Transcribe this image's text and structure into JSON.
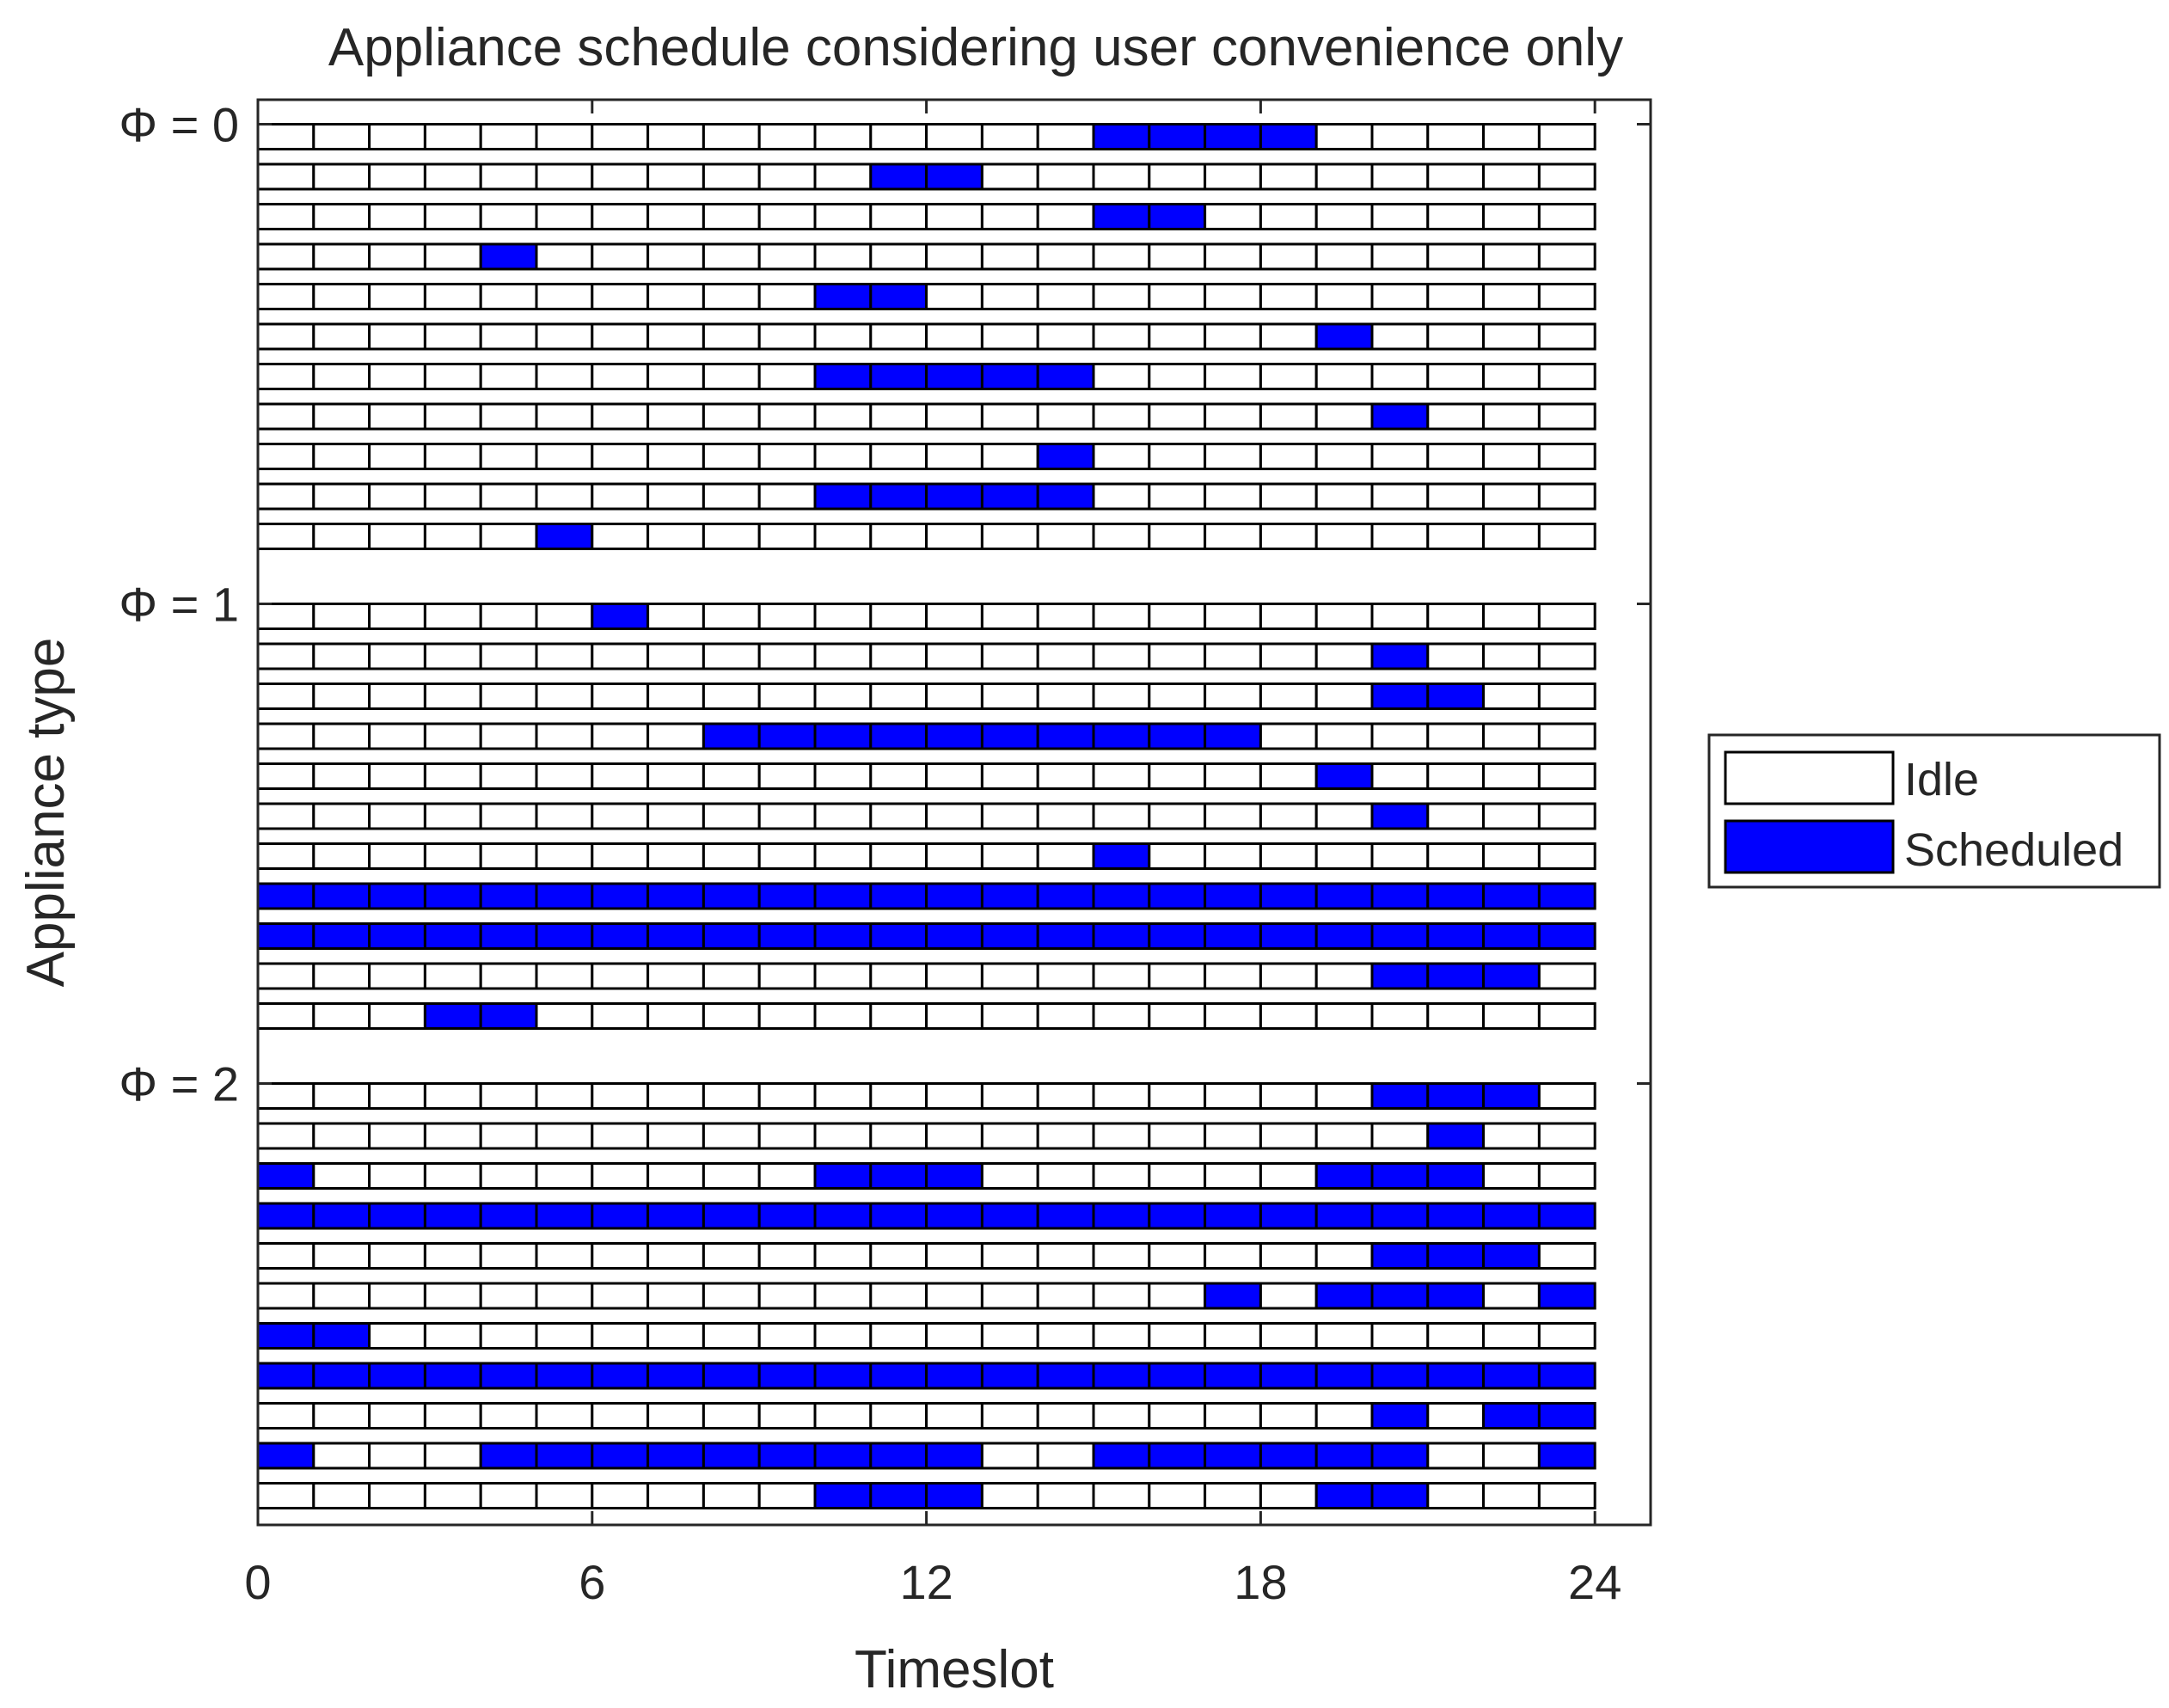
{
  "chart_data": {
    "type": "heatmap",
    "title": "Appliance schedule considering user convenience only",
    "xlabel": "Timeslot",
    "ylabel": "Appliance type",
    "xlim": [
      0,
      25
    ],
    "x_ticks": [
      0,
      6,
      12,
      18,
      24
    ],
    "timeslots": 24,
    "y_ticks": [
      {
        "label": "Φ = 0",
        "row": 0
      },
      {
        "label": "Φ = 1",
        "row": 11
      },
      {
        "label": "Φ = 2",
        "row": 22
      }
    ],
    "legend": {
      "position": "right",
      "entries": [
        {
          "label": "Idle",
          "color": "#ffffff"
        },
        {
          "label": "Scheduled",
          "color": "#0000ff"
        }
      ]
    },
    "groups": [
      {
        "phi": 0,
        "rows": [
          [
            15,
            16,
            17,
            18
          ],
          [
            11,
            12
          ],
          [
            15,
            16
          ],
          [
            4
          ],
          [
            10,
            11
          ],
          [
            19
          ],
          [
            10,
            11,
            12,
            13,
            14
          ],
          [
            20
          ],
          [
            14
          ],
          [
            10,
            11,
            12,
            13,
            14
          ],
          [
            5
          ]
        ]
      },
      {
        "phi": 1,
        "rows": [
          [
            6
          ],
          [
            20
          ],
          [
            20,
            21
          ],
          [
            8,
            9,
            10,
            11,
            12,
            13,
            14,
            15,
            16,
            17
          ],
          [
            19
          ],
          [
            20
          ],
          [
            15
          ],
          [
            0,
            1,
            2,
            3,
            4,
            5,
            6,
            7,
            8,
            9,
            10,
            11,
            12,
            13,
            14,
            15,
            16,
            17,
            18,
            19,
            20,
            21,
            22,
            23
          ],
          [
            0,
            1,
            2,
            3,
            4,
            5,
            6,
            7,
            8,
            9,
            10,
            11,
            12,
            13,
            14,
            15,
            16,
            17,
            18,
            19,
            20,
            21,
            22,
            23
          ],
          [
            20,
            21,
            22
          ],
          [
            3,
            4
          ]
        ]
      },
      {
        "phi": 2,
        "rows": [
          [
            20,
            21,
            22
          ],
          [
            21
          ],
          [
            0,
            10,
            11,
            12,
            19,
            20,
            21
          ],
          [
            0,
            1,
            2,
            3,
            4,
            5,
            6,
            7,
            8,
            9,
            10,
            11,
            12,
            13,
            14,
            15,
            16,
            17,
            18,
            19,
            20,
            21,
            22,
            23
          ],
          [
            20,
            21,
            22
          ],
          [
            17,
            19,
            20,
            21,
            23
          ],
          [
            0,
            1
          ],
          [
            0,
            1,
            2,
            3,
            4,
            5,
            6,
            7,
            8,
            9,
            10,
            11,
            12,
            13,
            14,
            15,
            16,
            17,
            18,
            19,
            20,
            21,
            22,
            23
          ],
          [
            20,
            22,
            23
          ],
          [
            0,
            4,
            5,
            6,
            7,
            8,
            9,
            10,
            11,
            12,
            15,
            16,
            17,
            18,
            19,
            20,
            23
          ],
          [
            10,
            11,
            12,
            19,
            20
          ]
        ]
      }
    ]
  },
  "colors": {
    "idle": "#ffffff",
    "scheduled": "#0000ff",
    "stroke": "#000000",
    "text": "#262626",
    "axis": "#262626"
  }
}
